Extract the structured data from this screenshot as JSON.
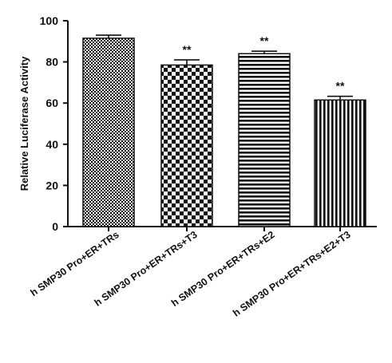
{
  "chart_data": {
    "type": "bar",
    "title": "",
    "xlabel": "",
    "ylabel": "Relative Luciferase Activity",
    "ylim": [
      0,
      100
    ],
    "yticks": [
      "0",
      "20",
      "40",
      "60",
      "80",
      "100"
    ],
    "grid": false,
    "categories": [
      "h SMP30 Pro+ER+TRs",
      "h SMP30 Pro+ER+TRs+T3",
      "h SMP30 Pro+ER+TRs+E2",
      "h SMP30 Pro+ER+TRs+E2+T3"
    ],
    "values": [
      91.5,
      78.5,
      84,
      61.5
    ],
    "errors": [
      1.5,
      2.5,
      1.2,
      1.8
    ],
    "significance": [
      "",
      "**",
      "**",
      "**"
    ],
    "patterns": [
      "fine-checker",
      "coarse-checker",
      "horizontal-stripes",
      "vertical-stripes"
    ],
    "colors": {
      "ink": "#111111",
      "fill_light": "#ffffff"
    }
  }
}
